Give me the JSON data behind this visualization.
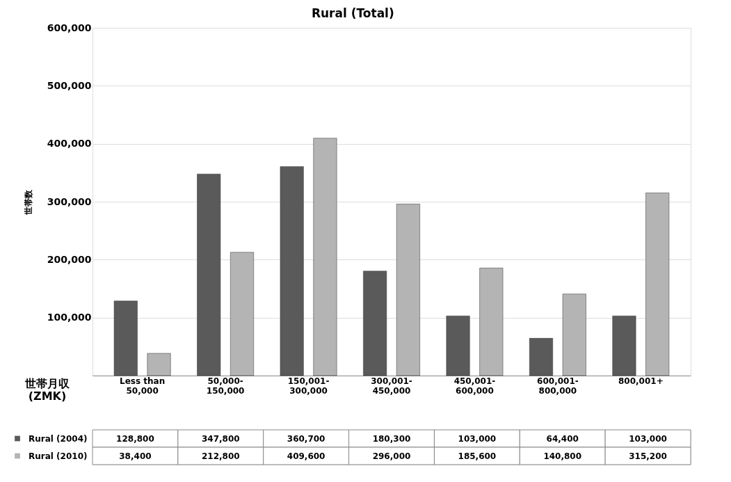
{
  "chart_data": {
    "type": "bar",
    "title": "Rural (Total)",
    "ylabel": "世帯数",
    "categories": [
      "Less than\n50,000",
      "50,000-\n150,000",
      "150,001-\n300,000",
      "300,001-\n450,000",
      "450,001-\n600,000",
      "600,001-\n800,000",
      "800,001+"
    ],
    "series": [
      {
        "name": "Rural (2004)",
        "color": "#5a5a5a",
        "values": [
          128800,
          347800,
          360700,
          180300,
          103000,
          64400,
          103000
        ],
        "value_labels": [
          "128,800",
          "347,800",
          "360,700",
          "180,300",
          "103,000",
          "64,400",
          "103,000"
        ]
      },
      {
        "name": "Rural (2010)",
        "color": "#b4b4b4",
        "values": [
          38400,
          212800,
          409600,
          296000,
          185600,
          140800,
          315200
        ],
        "value_labels": [
          "38,400",
          "212,800",
          "409,600",
          "296,000",
          "185,600",
          "140,800",
          "315,200"
        ]
      }
    ],
    "ylim": [
      0,
      600000
    ],
    "yticks": [
      {
        "value": 0,
        "label": null
      },
      {
        "value": 100000,
        "label": "100,000"
      },
      {
        "value": 200000,
        "label": "200,000"
      },
      {
        "value": 300000,
        "label": "300,000"
      },
      {
        "value": 400000,
        "label": "400,000"
      },
      {
        "value": 500000,
        "label": "500,000"
      },
      {
        "value": 600000,
        "label": "600,000"
      }
    ],
    "grid": "y",
    "legend": "bottom",
    "annotations": [
      "世帯月収 (ZMK)"
    ]
  }
}
